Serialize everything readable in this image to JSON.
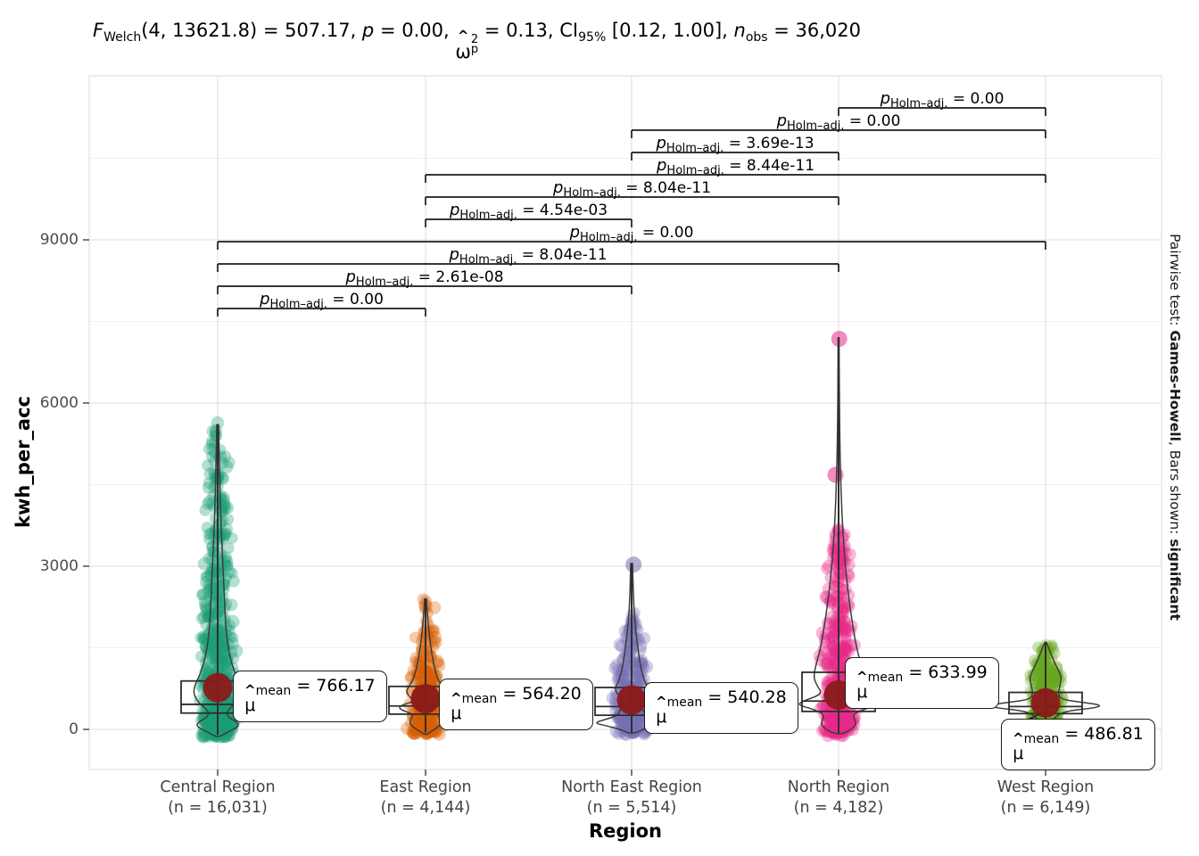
{
  "title": {
    "f": "F",
    "f_sub": "Welch",
    "seg1": "(4, 13621.8) = 507.17, ",
    "p": "p",
    "seg2": " = 0.00, ",
    "omega_hat": "^",
    "omega": "ω",
    "omega_sup": "2",
    "omega_sub": "p",
    "seg3": " = 0.13, CI",
    "ci_sub": "95%",
    "seg4": " [0.12, 1.00], ",
    "n": "n",
    "n_sub": "obs",
    "seg5": " = 36,020"
  },
  "y_axis": {
    "title": "kwh_per_acc",
    "ticks": [
      {
        "label": "0",
        "value": 0
      },
      {
        "label": "3000",
        "value": 3000
      },
      {
        "label": "6000",
        "value": 6000
      },
      {
        "label": "9000",
        "value": 9000
      }
    ],
    "minor_values": [
      1500,
      4500,
      7500,
      10500
    ]
  },
  "x_axis": {
    "title": "Region"
  },
  "caption": {
    "prefix": "Pairwise test: ",
    "test": "Games-Howell",
    "mid": ", Bars shown: ",
    "emph": "significant"
  },
  "mean_symbol": {
    "hat": "^",
    "mu": "μ",
    "sub": "mean",
    "eq": " = "
  },
  "bracket_symbol": {
    "p": "p",
    "sub": "Holm–adj.",
    "eq": " = "
  },
  "chart_data": {
    "type": "violin",
    "title": "F Welch(4, 13621.8) = 507.17, p = 0.00, omega2p = 0.13, CI95% [0.12, 1.00], n obs = 36,020",
    "xlabel": "Region",
    "ylabel": "kwh_per_acc",
    "ylim": [
      -740,
      12000
    ],
    "ytick_values": [
      0,
      3000,
      6000,
      9000
    ],
    "legend_position": "none",
    "grid": true,
    "caption": "Pairwise test: Games-Howell, Bars shown: significant",
    "anova": {
      "F": "507.17",
      "df1": "4",
      "df2": "13621.8",
      "p": "0.00",
      "omega_sq_p": "0.13",
      "ci95": "[0.12, 1.00]",
      "n_obs": "36,020"
    },
    "groups": [
      {
        "name": "Central Region",
        "n_label": "(n = 16,031)",
        "n": 16031,
        "color": "#1B9E77",
        "mean": 766.17,
        "mean_label": "766.17",
        "box": {
          "q1": 300,
          "median": 460,
          "q3": 890,
          "lo": -100,
          "hi": 5600
        },
        "cloud": {
          "n": 620,
          "segments": [
            [
              -150,
              250,
              0.28,
              22
            ],
            [
              250,
              900,
              0.22,
              22
            ],
            [
              900,
              1800,
              0.2,
              22
            ],
            [
              1800,
              3000,
              0.14,
              21
            ],
            [
              3000,
              4300,
              0.1,
              19
            ],
            [
              4300,
              5300,
              0.05,
              14
            ],
            [
              5300,
              5650,
              0.01,
              10
            ]
          ]
        },
        "outliers": [],
        "violin": [
          [
            5600,
            1
          ],
          [
            4000,
            3
          ],
          [
            3000,
            6
          ],
          [
            2200,
            8
          ],
          [
            1700,
            10
          ],
          [
            1300,
            14
          ],
          [
            1000,
            20
          ],
          [
            800,
            26
          ],
          [
            650,
            27
          ],
          [
            500,
            22
          ],
          [
            380,
            13
          ],
          [
            300,
            10
          ],
          [
            220,
            12
          ],
          [
            150,
            20
          ],
          [
            80,
            24
          ],
          [
            20,
            20
          ],
          [
            -60,
            10
          ],
          [
            -130,
            3
          ]
        ],
        "label_offset": [
          17,
          -19
        ]
      },
      {
        "name": "East Region",
        "n_label": "(n = 4,144)",
        "n": 4144,
        "color": "#D95F02",
        "mean": 564.2,
        "mean_label": "564.20",
        "box": {
          "q1": 280,
          "median": 430,
          "q3": 790,
          "lo": -60,
          "hi": 2400
        },
        "cloud": {
          "n": 250,
          "segments": [
            [
              -100,
              250,
              0.3,
              22
            ],
            [
              250,
              700,
              0.3,
              22
            ],
            [
              700,
              1200,
              0.22,
              21
            ],
            [
              1200,
              1800,
              0.13,
              18
            ],
            [
              1800,
              2400,
              0.05,
              12
            ]
          ]
        },
        "outliers": [],
        "violin": [
          [
            2400,
            1
          ],
          [
            1900,
            3
          ],
          [
            1500,
            6
          ],
          [
            1200,
            9
          ],
          [
            950,
            13
          ],
          [
            800,
            18
          ],
          [
            700,
            22
          ],
          [
            600,
            18
          ],
          [
            520,
            12
          ],
          [
            450,
            26
          ],
          [
            400,
            30
          ],
          [
            350,
            26
          ],
          [
            280,
            14
          ],
          [
            200,
            16
          ],
          [
            120,
            18
          ],
          [
            40,
            14
          ],
          [
            -40,
            6
          ],
          [
            -90,
            2
          ]
        ],
        "label_offset": [
          15,
          -23
        ]
      },
      {
        "name": "North East Region",
        "n_label": "(n = 5,514)",
        "n": 5514,
        "color": "#7570B3",
        "mean": 540.28,
        "mean_label": "540.28",
        "box": {
          "q1": 260,
          "median": 420,
          "q3": 770,
          "lo": -60,
          "hi": 3050
        },
        "cloud": {
          "n": 270,
          "segments": [
            [
              -100,
              250,
              0.3,
              22
            ],
            [
              250,
              700,
              0.3,
              22
            ],
            [
              700,
              1200,
              0.2,
              21
            ],
            [
              1200,
              1700,
              0.13,
              17
            ],
            [
              1700,
              2150,
              0.07,
              12
            ]
          ]
        },
        "outliers": [
          3030
        ],
        "violin": [
          [
            3050,
            1
          ],
          [
            2400,
            2
          ],
          [
            1900,
            4
          ],
          [
            1500,
            7
          ],
          [
            1150,
            10
          ],
          [
            900,
            14
          ],
          [
            750,
            19
          ],
          [
            650,
            16
          ],
          [
            550,
            11
          ],
          [
            450,
            10
          ],
          [
            350,
            13
          ],
          [
            250,
            16
          ],
          [
            180,
            30
          ],
          [
            120,
            42
          ],
          [
            70,
            30
          ],
          [
            0,
            12
          ],
          [
            -70,
            4
          ]
        ],
        "label_offset": [
          14,
          -20
        ]
      },
      {
        "name": "North Region",
        "n_label": "(n = 4,182)",
        "n": 4182,
        "color": "#E7298A",
        "mean": 633.99,
        "mean_label": "633.99",
        "box": {
          "q1": 330,
          "median": 520,
          "q3": 1050,
          "lo": -70,
          "hi": 7200
        },
        "cloud": {
          "n": 420,
          "segments": [
            [
              -120,
              300,
              0.26,
              22
            ],
            [
              300,
              900,
              0.26,
              22
            ],
            [
              900,
              1700,
              0.2,
              22
            ],
            [
              1700,
              2600,
              0.15,
              20
            ],
            [
              2600,
              3300,
              0.09,
              16
            ],
            [
              3300,
              3700,
              0.04,
              10
            ]
          ]
        },
        "outliers": [
          4680,
          7180
        ],
        "violin": [
          [
            7200,
            0.5
          ],
          [
            5500,
            1
          ],
          [
            4200,
            3
          ],
          [
            3300,
            6
          ],
          [
            2600,
            10
          ],
          [
            2000,
            15
          ],
          [
            1500,
            20
          ],
          [
            1150,
            26
          ],
          [
            950,
            28
          ],
          [
            800,
            24
          ],
          [
            650,
            18
          ],
          [
            520,
            40
          ],
          [
            450,
            46
          ],
          [
            380,
            30
          ],
          [
            280,
            16
          ],
          [
            180,
            18
          ],
          [
            90,
            20
          ],
          [
            0,
            14
          ],
          [
            -80,
            5
          ]
        ],
        "label_offset": [
          7,
          -42
        ]
      },
      {
        "name": "West Region",
        "n_label": "(n = 6,149)",
        "n": 6149,
        "color": "#66A61E",
        "mean": 486.81,
        "mean_label": "486.81",
        "box": {
          "q1": 290,
          "median": 420,
          "q3": 680,
          "lo": -40,
          "hi": 1600
        },
        "cloud": {
          "n": 270,
          "segments": [
            [
              -80,
              250,
              0.3,
              22
            ],
            [
              250,
              600,
              0.3,
              22
            ],
            [
              600,
              1000,
              0.22,
              20
            ],
            [
              1000,
              1350,
              0.13,
              16
            ],
            [
              1350,
              1600,
              0.05,
              11
            ]
          ]
        },
        "outliers": [],
        "violin": [
          [
            1600,
            1
          ],
          [
            1300,
            8
          ],
          [
            1100,
            14
          ],
          [
            950,
            18
          ],
          [
            800,
            16
          ],
          [
            650,
            14
          ],
          [
            550,
            18
          ],
          [
            500,
            40
          ],
          [
            450,
            62
          ],
          [
            400,
            58
          ],
          [
            340,
            24
          ],
          [
            250,
            12
          ],
          [
            150,
            8
          ],
          [
            50,
            4
          ],
          [
            -30,
            1
          ]
        ],
        "label_offset": [
          -50,
          18
        ]
      }
    ],
    "pairwise": [
      {
        "a": 3,
        "b": 4,
        "group1": "North Region",
        "group2": "West Region",
        "p_holm_adj": "0.00"
      },
      {
        "a": 2,
        "b": 4,
        "group1": "North East Region",
        "group2": "West Region",
        "p_holm_adj": "0.00"
      },
      {
        "a": 2,
        "b": 3,
        "group1": "North East Region",
        "group2": "North Region",
        "p_holm_adj": "3.69e-13"
      },
      {
        "a": 1,
        "b": 4,
        "group1": "East Region",
        "group2": "West Region",
        "p_holm_adj": "8.44e-11"
      },
      {
        "a": 1,
        "b": 3,
        "group1": "East Region",
        "group2": "North Region",
        "p_holm_adj": "8.04e-11"
      },
      {
        "a": 1,
        "b": 2,
        "group1": "East Region",
        "group2": "North East Region",
        "p_holm_adj": "4.54e-03"
      },
      {
        "a": 0,
        "b": 4,
        "group1": "Central Region",
        "group2": "West Region",
        "p_holm_adj": "0.00"
      },
      {
        "a": 0,
        "b": 3,
        "group1": "Central Region",
        "group2": "North Region",
        "p_holm_adj": "8.04e-11"
      },
      {
        "a": 0,
        "b": 2,
        "group1": "Central Region",
        "group2": "North East Region",
        "p_holm_adj": "2.61e-08"
      },
      {
        "a": 0,
        "b": 1,
        "group1": "Central Region",
        "group2": "East Region",
        "p_holm_adj": "0.00"
      }
    ],
    "colors": {
      "mean_dot": "#8B1A1A",
      "violin_stroke": "#3C3C3C",
      "bracket": "#1A1A1A",
      "grid_major": "#E3E3E3",
      "grid_minor": "#F0F0F0",
      "panel_border": "#D8D8D8",
      "tick_text": "#4D4D4D"
    }
  }
}
